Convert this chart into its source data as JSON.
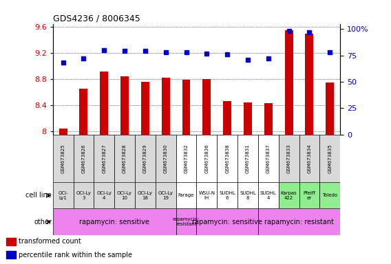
{
  "title": "GDS4236 / 8006345",
  "samples": [
    "GSM673825",
    "GSM673826",
    "GSM673827",
    "GSM673828",
    "GSM673829",
    "GSM673830",
    "GSM673832",
    "GSM673836",
    "GSM673838",
    "GSM673831",
    "GSM673837",
    "GSM673833",
    "GSM673834",
    "GSM673835"
  ],
  "bar_values": [
    8.04,
    8.65,
    8.92,
    8.84,
    8.76,
    8.82,
    8.79,
    8.8,
    8.47,
    8.44,
    8.43,
    9.55,
    9.5,
    8.75
  ],
  "dot_values": [
    68,
    72,
    80,
    79,
    79,
    78,
    78,
    77,
    76,
    71,
    72,
    98,
    97,
    78
  ],
  "ylim_left": [
    7.95,
    9.65
  ],
  "ylim_right": [
    0,
    105
  ],
  "yticks_left": [
    8.0,
    8.4,
    8.8,
    9.2,
    9.6
  ],
  "ytick_labels_left": [
    "8",
    "8.4",
    "8.8",
    "9.2",
    "9.6"
  ],
  "yticks_right": [
    0,
    25,
    50,
    75,
    100
  ],
  "ytick_labels_right": [
    "0",
    "25",
    "50",
    "75",
    "100%"
  ],
  "bar_color": "#cc0000",
  "dot_color": "#0000cc",
  "cell_line_labels": [
    "OCI-\nLy1",
    "OCI-Ly\n3",
    "OCI-Ly\n4",
    "OCI-Ly\n10",
    "OCI-Ly\n18",
    "OCI-Ly\n19",
    "Farage",
    "WSU-N\nIH",
    "SUDHL\n6",
    "SUDHL\n8",
    "SUDHL\n4",
    "Karpas\n422",
    "Pfeiff\ner",
    "Toledo"
  ],
  "cell_line_bg": [
    "#d9d9d9",
    "#d9d9d9",
    "#d9d9d9",
    "#d9d9d9",
    "#d9d9d9",
    "#d9d9d9",
    "#ffffff",
    "#ffffff",
    "#ffffff",
    "#ffffff",
    "#ffffff",
    "#90ee90",
    "#90ee90",
    "#90ee90"
  ],
  "sample_bg": [
    "#d9d9d9",
    "#d9d9d9",
    "#d9d9d9",
    "#d9d9d9",
    "#d9d9d9",
    "#d9d9d9",
    "#ffffff",
    "#ffffff",
    "#ffffff",
    "#ffffff",
    "#ffffff",
    "#d9d9d9",
    "#d9d9d9",
    "#d9d9d9"
  ],
  "other_data": [
    [
      0,
      6,
      "rapamycin: sensitive",
      "#ee82ee"
    ],
    [
      6,
      7,
      "rapamycin:\nresistant",
      "#ee82ee"
    ],
    [
      7,
      10,
      "rapamycin: sensitive",
      "#ee82ee"
    ],
    [
      10,
      14,
      "rapamycin: resistant",
      "#ee82ee"
    ]
  ],
  "legend_items": [
    [
      "transformed count",
      "#cc0000"
    ],
    [
      "percentile rank within the sample",
      "#0000cc"
    ]
  ],
  "cell_line_label": "cell line",
  "other_label": "other"
}
